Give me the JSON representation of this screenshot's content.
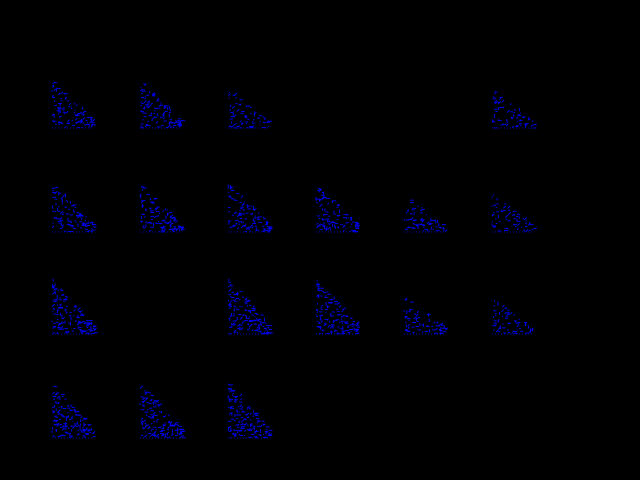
{
  "figure": {
    "background_color": "#000000",
    "mark_color": "#0000ff"
  },
  "chart_data": {
    "type": "scatter",
    "grid": false,
    "title": "",
    "panels": [
      {
        "row": 0,
        "col": 0,
        "filled": true,
        "pattern": "triangular-blue-point-cloud"
      },
      {
        "row": 0,
        "col": 1,
        "filled": true,
        "pattern": "triangular-blue-point-cloud"
      },
      {
        "row": 0,
        "col": 2,
        "filled": true,
        "pattern": "sparse-blue-point-cloud"
      },
      {
        "row": 0,
        "col": 3,
        "filled": false
      },
      {
        "row": 0,
        "col": 4,
        "filled": false
      },
      {
        "row": 0,
        "col": 5,
        "filled": true,
        "pattern": "sparse-blue-point-cloud"
      },
      {
        "row": 1,
        "col": 0,
        "filled": true,
        "pattern": "triangular-blue-point-cloud"
      },
      {
        "row": 1,
        "col": 1,
        "filled": true,
        "pattern": "triangular-blue-point-cloud"
      },
      {
        "row": 1,
        "col": 2,
        "filled": true,
        "pattern": "triangular-blue-point-cloud"
      },
      {
        "row": 1,
        "col": 3,
        "filled": true,
        "pattern": "triangular-blue-point-cloud"
      },
      {
        "row": 1,
        "col": 4,
        "filled": true,
        "pattern": "sparse-blue-point-cloud"
      },
      {
        "row": 1,
        "col": 5,
        "filled": true,
        "pattern": "sparse-blue-point-cloud"
      },
      {
        "row": 2,
        "col": 0,
        "filled": true,
        "pattern": "dense-blue-point-cloud"
      },
      {
        "row": 2,
        "col": 1,
        "filled": false
      },
      {
        "row": 2,
        "col": 2,
        "filled": true,
        "pattern": "dense-blue-point-cloud"
      },
      {
        "row": 2,
        "col": 3,
        "filled": true,
        "pattern": "dense-blue-point-cloud"
      },
      {
        "row": 2,
        "col": 4,
        "filled": true,
        "pattern": "sparse-blue-point-cloud"
      },
      {
        "row": 2,
        "col": 5,
        "filled": true,
        "pattern": "sparse-blue-point-cloud"
      },
      {
        "row": 3,
        "col": 0,
        "filled": true,
        "pattern": "dense-blue-point-cloud"
      },
      {
        "row": 3,
        "col": 1,
        "filled": true,
        "pattern": "dense-blue-point-cloud"
      },
      {
        "row": 3,
        "col": 2,
        "filled": true,
        "pattern": "dense-blue-point-cloud"
      },
      {
        "row": 3,
        "col": 3,
        "filled": false
      },
      {
        "row": 3,
        "col": 4,
        "filled": false
      },
      {
        "row": 3,
        "col": 5,
        "filled": false
      }
    ]
  }
}
